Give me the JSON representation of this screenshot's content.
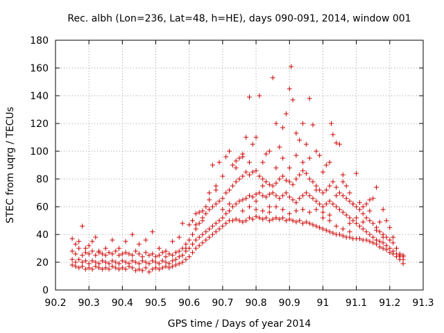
{
  "chart_data": {
    "type": "scatter",
    "title": "Rec. albh (Lon=236, Lat=48, h=HE), days 090-091, 2014, window 001",
    "xlabel": "GPS time / Days of year 2014",
    "ylabel": "STEC from uqrg / TECUs",
    "xlim": [
      90.2,
      91.3
    ],
    "ylim": [
      0,
      180
    ],
    "x_ticks": [
      "90.2",
      "90.3",
      "90.4",
      "90.5",
      "90.6",
      "90.7",
      "90.8",
      "90.9",
      "91",
      "91.1",
      "91.2",
      "91.3"
    ],
    "y_ticks": [
      "0",
      "20",
      "40",
      "60",
      "80",
      "100",
      "120",
      "140",
      "160",
      "180"
    ],
    "grid": true,
    "legend": "none",
    "marker": "plus",
    "color": "#cc0000",
    "points": [
      [
        90.25,
        37
      ],
      [
        90.26,
        33
      ],
      [
        90.27,
        35
      ],
      [
        90.28,
        46
      ],
      [
        90.29,
        30
      ],
      [
        90.3,
        32
      ],
      [
        90.31,
        35
      ],
      [
        90.32,
        38
      ],
      [
        90.33,
        28
      ],
      [
        90.35,
        30
      ],
      [
        90.37,
        36
      ],
      [
        90.39,
        30
      ],
      [
        90.41,
        35
      ],
      [
        90.43,
        40
      ],
      [
        90.45,
        33
      ],
      [
        90.47,
        36
      ],
      [
        90.49,
        42
      ],
      [
        90.51,
        30
      ],
      [
        90.53,
        28
      ],
      [
        90.55,
        35
      ],
      [
        90.57,
        38
      ],
      [
        90.58,
        48
      ],
      [
        90.59,
        30
      ],
      [
        90.61,
        50
      ],
      [
        90.62,
        47
      ],
      [
        90.63,
        56
      ],
      [
        90.64,
        50
      ],
      [
        90.65,
        60
      ],
      [
        90.66,
        70
      ],
      [
        90.67,
        90
      ],
      [
        90.68,
        75
      ],
      [
        90.69,
        92
      ],
      [
        90.7,
        82
      ],
      [
        90.71,
        96
      ],
      [
        90.72,
        100
      ],
      [
        90.73,
        90
      ],
      [
        90.74,
        93
      ],
      [
        90.75,
        95
      ],
      [
        90.76,
        98
      ],
      [
        90.77,
        110
      ],
      [
        90.78,
        139
      ],
      [
        90.79,
        105
      ],
      [
        90.8,
        110
      ],
      [
        90.81,
        140
      ],
      [
        90.82,
        92
      ],
      [
        90.83,
        98
      ],
      [
        90.84,
        100
      ],
      [
        90.85,
        153
      ],
      [
        90.86,
        120
      ],
      [
        90.87,
        103
      ],
      [
        90.88,
        117
      ],
      [
        90.89,
        127
      ],
      [
        90.9,
        145
      ],
      [
        90.905,
        161
      ],
      [
        90.91,
        137
      ],
      [
        90.92,
        113
      ],
      [
        90.93,
        108
      ],
      [
        90.94,
        120
      ],
      [
        90.95,
        105
      ],
      [
        90.96,
        138
      ],
      [
        90.97,
        119
      ],
      [
        90.98,
        100
      ],
      [
        90.99,
        97
      ],
      [
        91.0,
        85
      ],
      [
        91.01,
        90
      ],
      [
        91.02,
        92
      ],
      [
        91.025,
        120
      ],
      [
        91.03,
        112
      ],
      [
        91.04,
        106
      ],
      [
        91.05,
        105
      ],
      [
        91.06,
        83
      ],
      [
        91.07,
        75
      ],
      [
        91.08,
        70
      ],
      [
        91.09,
        62
      ],
      [
        91.1,
        84
      ],
      [
        91.11,
        63
      ],
      [
        91.12,
        60
      ],
      [
        91.13,
        62
      ],
      [
        91.14,
        65
      ],
      [
        91.15,
        66
      ],
      [
        91.16,
        74
      ],
      [
        91.17,
        49
      ],
      [
        91.18,
        58
      ],
      [
        91.19,
        50
      ],
      [
        91.2,
        45
      ],
      [
        91.21,
        38
      ],
      [
        91.22,
        30
      ],
      [
        91.23,
        25
      ],
      [
        91.24,
        24
      ],
      [
        90.25,
        28
      ],
      [
        90.26,
        26
      ],
      [
        90.27,
        30
      ],
      [
        90.28,
        25
      ],
      [
        90.29,
        27
      ],
      [
        90.3,
        26
      ],
      [
        90.31,
        28
      ],
      [
        90.32,
        25
      ],
      [
        90.33,
        27
      ],
      [
        90.34,
        26
      ],
      [
        90.35,
        25
      ],
      [
        90.36,
        27
      ],
      [
        90.37,
        26
      ],
      [
        90.38,
        28
      ],
      [
        90.39,
        25
      ],
      [
        90.4,
        26
      ],
      [
        90.41,
        27
      ],
      [
        90.42,
        26
      ],
      [
        90.43,
        25
      ],
      [
        90.44,
        28
      ],
      [
        90.45,
        26
      ],
      [
        90.46,
        24
      ],
      [
        90.47,
        27
      ],
      [
        90.48,
        25
      ],
      [
        90.49,
        26
      ],
      [
        90.5,
        24
      ],
      [
        90.51,
        25
      ],
      [
        90.52,
        27
      ],
      [
        90.53,
        24
      ],
      [
        90.54,
        26
      ],
      [
        90.55,
        25
      ],
      [
        90.56,
        27
      ],
      [
        90.57,
        28
      ],
      [
        90.58,
        30
      ],
      [
        90.59,
        33
      ],
      [
        90.6,
        36
      ],
      [
        90.61,
        40
      ],
      [
        90.62,
        44
      ],
      [
        90.63,
        48
      ],
      [
        90.64,
        52
      ],
      [
        90.65,
        55
      ],
      [
        90.66,
        58
      ],
      [
        90.67,
        60
      ],
      [
        90.68,
        62
      ],
      [
        90.69,
        64
      ],
      [
        90.7,
        66
      ],
      [
        90.71,
        70
      ],
      [
        90.72,
        72
      ],
      [
        90.73,
        75
      ],
      [
        90.74,
        78
      ],
      [
        90.75,
        80
      ],
      [
        90.76,
        82
      ],
      [
        90.77,
        85
      ],
      [
        90.78,
        83
      ],
      [
        90.79,
        85
      ],
      [
        90.8,
        86
      ],
      [
        90.81,
        82
      ],
      [
        90.82,
        80
      ],
      [
        90.83,
        78
      ],
      [
        90.84,
        76
      ],
      [
        90.85,
        75
      ],
      [
        90.86,
        77
      ],
      [
        90.87,
        80
      ],
      [
        90.88,
        82
      ],
      [
        90.89,
        79
      ],
      [
        90.9,
        78
      ],
      [
        90.91,
        76
      ],
      [
        90.92,
        80
      ],
      [
        90.93,
        83
      ],
      [
        90.94,
        86
      ],
      [
        90.95,
        84
      ],
      [
        90.96,
        80
      ],
      [
        90.97,
        78
      ],
      [
        90.98,
        75
      ],
      [
        90.99,
        72
      ],
      [
        91.0,
        70
      ],
      [
        91.01,
        72
      ],
      [
        91.02,
        75
      ],
      [
        91.03,
        78
      ],
      [
        91.04,
        74
      ],
      [
        91.05,
        70
      ],
      [
        91.06,
        68
      ],
      [
        91.07,
        66
      ],
      [
        91.08,
        64
      ],
      [
        91.09,
        62
      ],
      [
        91.1,
        60
      ],
      [
        91.11,
        58
      ],
      [
        91.12,
        55
      ],
      [
        91.13,
        52
      ],
      [
        91.14,
        50
      ],
      [
        91.15,
        48
      ],
      [
        91.16,
        45
      ],
      [
        91.17,
        42
      ],
      [
        91.18,
        40
      ],
      [
        91.19,
        38
      ],
      [
        91.2,
        36
      ],
      [
        91.21,
        34
      ],
      [
        91.22,
        30
      ],
      [
        91.23,
        26
      ],
      [
        91.24,
        25
      ],
      [
        90.25,
        22
      ],
      [
        90.26,
        20
      ],
      [
        90.27,
        22
      ],
      [
        90.28,
        20
      ],
      [
        90.29,
        21
      ],
      [
        90.3,
        19
      ],
      [
        90.31,
        21
      ],
      [
        90.32,
        20
      ],
      [
        90.33,
        19
      ],
      [
        90.34,
        21
      ],
      [
        90.35,
        20
      ],
      [
        90.36,
        19
      ],
      [
        90.37,
        21
      ],
      [
        90.38,
        20
      ],
      [
        90.39,
        19
      ],
      [
        90.4,
        21
      ],
      [
        90.41,
        20
      ],
      [
        90.42,
        19
      ],
      [
        90.43,
        21
      ],
      [
        90.44,
        20
      ],
      [
        90.45,
        19
      ],
      [
        90.46,
        21
      ],
      [
        90.47,
        20
      ],
      [
        90.48,
        19
      ],
      [
        90.49,
        21
      ],
      [
        90.5,
        20
      ],
      [
        90.51,
        19
      ],
      [
        90.52,
        21
      ],
      [
        90.53,
        20
      ],
      [
        90.54,
        19
      ],
      [
        90.55,
        21
      ],
      [
        90.56,
        22
      ],
      [
        90.57,
        24
      ],
      [
        90.58,
        25
      ],
      [
        90.59,
        28
      ],
      [
        90.6,
        30
      ],
      [
        90.61,
        33
      ],
      [
        90.62,
        36
      ],
      [
        90.63,
        38
      ],
      [
        90.64,
        40
      ],
      [
        90.65,
        42
      ],
      [
        90.66,
        44
      ],
      [
        90.67,
        46
      ],
      [
        90.68,
        48
      ],
      [
        90.69,
        50
      ],
      [
        90.7,
        52
      ],
      [
        90.71,
        55
      ],
      [
        90.72,
        57
      ],
      [
        90.73,
        60
      ],
      [
        90.74,
        62
      ],
      [
        90.75,
        64
      ],
      [
        90.76,
        65
      ],
      [
        90.77,
        66
      ],
      [
        90.78,
        68
      ],
      [
        90.79,
        67
      ],
      [
        90.8,
        69
      ],
      [
        90.81,
        70
      ],
      [
        90.82,
        68
      ],
      [
        90.83,
        67
      ],
      [
        90.84,
        69
      ],
      [
        90.85,
        70
      ],
      [
        90.86,
        68
      ],
      [
        90.87,
        66
      ],
      [
        90.88,
        68
      ],
      [
        90.89,
        70
      ],
      [
        90.9,
        67
      ],
      [
        90.91,
        65
      ],
      [
        90.92,
        63
      ],
      [
        90.93,
        66
      ],
      [
        90.94,
        68
      ],
      [
        90.95,
        70
      ],
      [
        90.96,
        68
      ],
      [
        90.97,
        66
      ],
      [
        90.98,
        64
      ],
      [
        90.99,
        62
      ],
      [
        91.0,
        60
      ],
      [
        91.01,
        62
      ],
      [
        91.02,
        64
      ],
      [
        91.03,
        62
      ],
      [
        91.04,
        60
      ],
      [
        91.05,
        58
      ],
      [
        91.06,
        56
      ],
      [
        91.07,
        54
      ],
      [
        91.08,
        52
      ],
      [
        91.09,
        50
      ],
      [
        91.1,
        48
      ],
      [
        91.11,
        46
      ],
      [
        91.12,
        44
      ],
      [
        91.13,
        42
      ],
      [
        91.14,
        40
      ],
      [
        91.15,
        38
      ],
      [
        91.16,
        36
      ],
      [
        91.17,
        35
      ],
      [
        91.18,
        34
      ],
      [
        91.19,
        32
      ],
      [
        91.2,
        30
      ],
      [
        91.21,
        28
      ],
      [
        91.22,
        26
      ],
      [
        91.23,
        24
      ],
      [
        91.24,
        22
      ],
      [
        90.25,
        18
      ],
      [
        90.26,
        17
      ],
      [
        90.27,
        16
      ],
      [
        90.28,
        17
      ],
      [
        90.29,
        15
      ],
      [
        90.3,
        16
      ],
      [
        90.31,
        15
      ],
      [
        90.32,
        17
      ],
      [
        90.33,
        16
      ],
      [
        90.34,
        15
      ],
      [
        90.35,
        16
      ],
      [
        90.36,
        15
      ],
      [
        90.37,
        17
      ],
      [
        90.38,
        16
      ],
      [
        90.39,
        15
      ],
      [
        90.4,
        16
      ],
      [
        90.41,
        15
      ],
      [
        90.42,
        17
      ],
      [
        90.43,
        16
      ],
      [
        90.44,
        14
      ],
      [
        90.45,
        15
      ],
      [
        90.46,
        14
      ],
      [
        90.47,
        16
      ],
      [
        90.48,
        13
      ],
      [
        90.49,
        15
      ],
      [
        90.5,
        16
      ],
      [
        90.51,
        15
      ],
      [
        90.52,
        16
      ],
      [
        90.53,
        17
      ],
      [
        90.54,
        16
      ],
      [
        90.55,
        17
      ],
      [
        90.56,
        18
      ],
      [
        90.57,
        19
      ],
      [
        90.58,
        20
      ],
      [
        90.59,
        22
      ],
      [
        90.6,
        24
      ],
      [
        90.61,
        27
      ],
      [
        90.62,
        30
      ],
      [
        90.63,
        32
      ],
      [
        90.64,
        34
      ],
      [
        90.65,
        36
      ],
      [
        90.66,
        38
      ],
      [
        90.67,
        40
      ],
      [
        90.68,
        42
      ],
      [
        90.69,
        44
      ],
      [
        90.7,
        46
      ],
      [
        90.71,
        48
      ],
      [
        90.72,
        50
      ],
      [
        90.73,
        50
      ],
      [
        90.74,
        51
      ],
      [
        90.75,
        50
      ],
      [
        90.76,
        49
      ],
      [
        90.77,
        50
      ],
      [
        90.78,
        52
      ],
      [
        90.79,
        51
      ],
      [
        90.8,
        53
      ],
      [
        90.81,
        52
      ],
      [
        90.82,
        51
      ],
      [
        90.83,
        52
      ],
      [
        90.84,
        50
      ],
      [
        90.85,
        51
      ],
      [
        90.86,
        52
      ],
      [
        90.87,
        51
      ],
      [
        90.88,
        52
      ],
      [
        90.89,
        50
      ],
      [
        90.9,
        51
      ],
      [
        90.91,
        50
      ],
      [
        90.92,
        49
      ],
      [
        90.93,
        50
      ],
      [
        90.94,
        48
      ],
      [
        90.95,
        49
      ],
      [
        90.96,
        48
      ],
      [
        90.97,
        47
      ],
      [
        90.98,
        46
      ],
      [
        90.99,
        45
      ],
      [
        91.0,
        44
      ],
      [
        91.01,
        43
      ],
      [
        91.02,
        42
      ],
      [
        91.03,
        41
      ],
      [
        91.04,
        40
      ],
      [
        91.05,
        40
      ],
      [
        91.06,
        39
      ],
      [
        91.07,
        38
      ],
      [
        91.08,
        38
      ],
      [
        91.09,
        37
      ],
      [
        91.1,
        37
      ],
      [
        91.11,
        37
      ],
      [
        91.12,
        36
      ],
      [
        91.13,
        36
      ],
      [
        91.14,
        35
      ],
      [
        91.15,
        34
      ],
      [
        91.16,
        33
      ],
      [
        91.17,
        31
      ],
      [
        91.18,
        30
      ],
      [
        91.19,
        29
      ],
      [
        91.2,
        27
      ],
      [
        91.21,
        26
      ],
      [
        91.22,
        24
      ],
      [
        91.23,
        22
      ],
      [
        91.24,
        19
      ],
      [
        90.6,
        47
      ],
      [
        90.62,
        55
      ],
      [
        90.64,
        57
      ],
      [
        90.66,
        65
      ],
      [
        90.68,
        72
      ],
      [
        90.7,
        58
      ],
      [
        90.72,
        62
      ],
      [
        90.74,
        88
      ],
      [
        90.76,
        96
      ],
      [
        90.78,
        92
      ],
      [
        90.8,
        64
      ],
      [
        90.82,
        75
      ],
      [
        90.84,
        60
      ],
      [
        90.86,
        88
      ],
      [
        90.88,
        95
      ],
      [
        90.9,
        88
      ],
      [
        90.92,
        97
      ],
      [
        90.94,
        92
      ],
      [
        90.96,
        95
      ],
      [
        90.98,
        72
      ],
      [
        91.0,
        52
      ],
      [
        91.02,
        54
      ],
      [
        91.04,
        68
      ],
      [
        91.06,
        78
      ],
      [
        91.08,
        48
      ],
      [
        91.1,
        52
      ],
      [
        91.12,
        49
      ],
      [
        91.14,
        57
      ],
      [
        91.16,
        43
      ],
      [
        91.18,
        38
      ],
      [
        90.76,
        57
      ],
      [
        90.78,
        60
      ],
      [
        90.8,
        58
      ],
      [
        90.82,
        57
      ],
      [
        90.84,
        56
      ],
      [
        90.86,
        60
      ],
      [
        90.88,
        58
      ],
      [
        90.9,
        55
      ],
      [
        90.92,
        57
      ],
      [
        90.94,
        58
      ],
      [
        90.96,
        56
      ],
      [
        90.98,
        58
      ],
      [
        91.0,
        56
      ],
      [
        91.02,
        50
      ],
      [
        91.04,
        46
      ],
      [
        91.06,
        44
      ],
      [
        91.08,
        42
      ]
    ]
  }
}
